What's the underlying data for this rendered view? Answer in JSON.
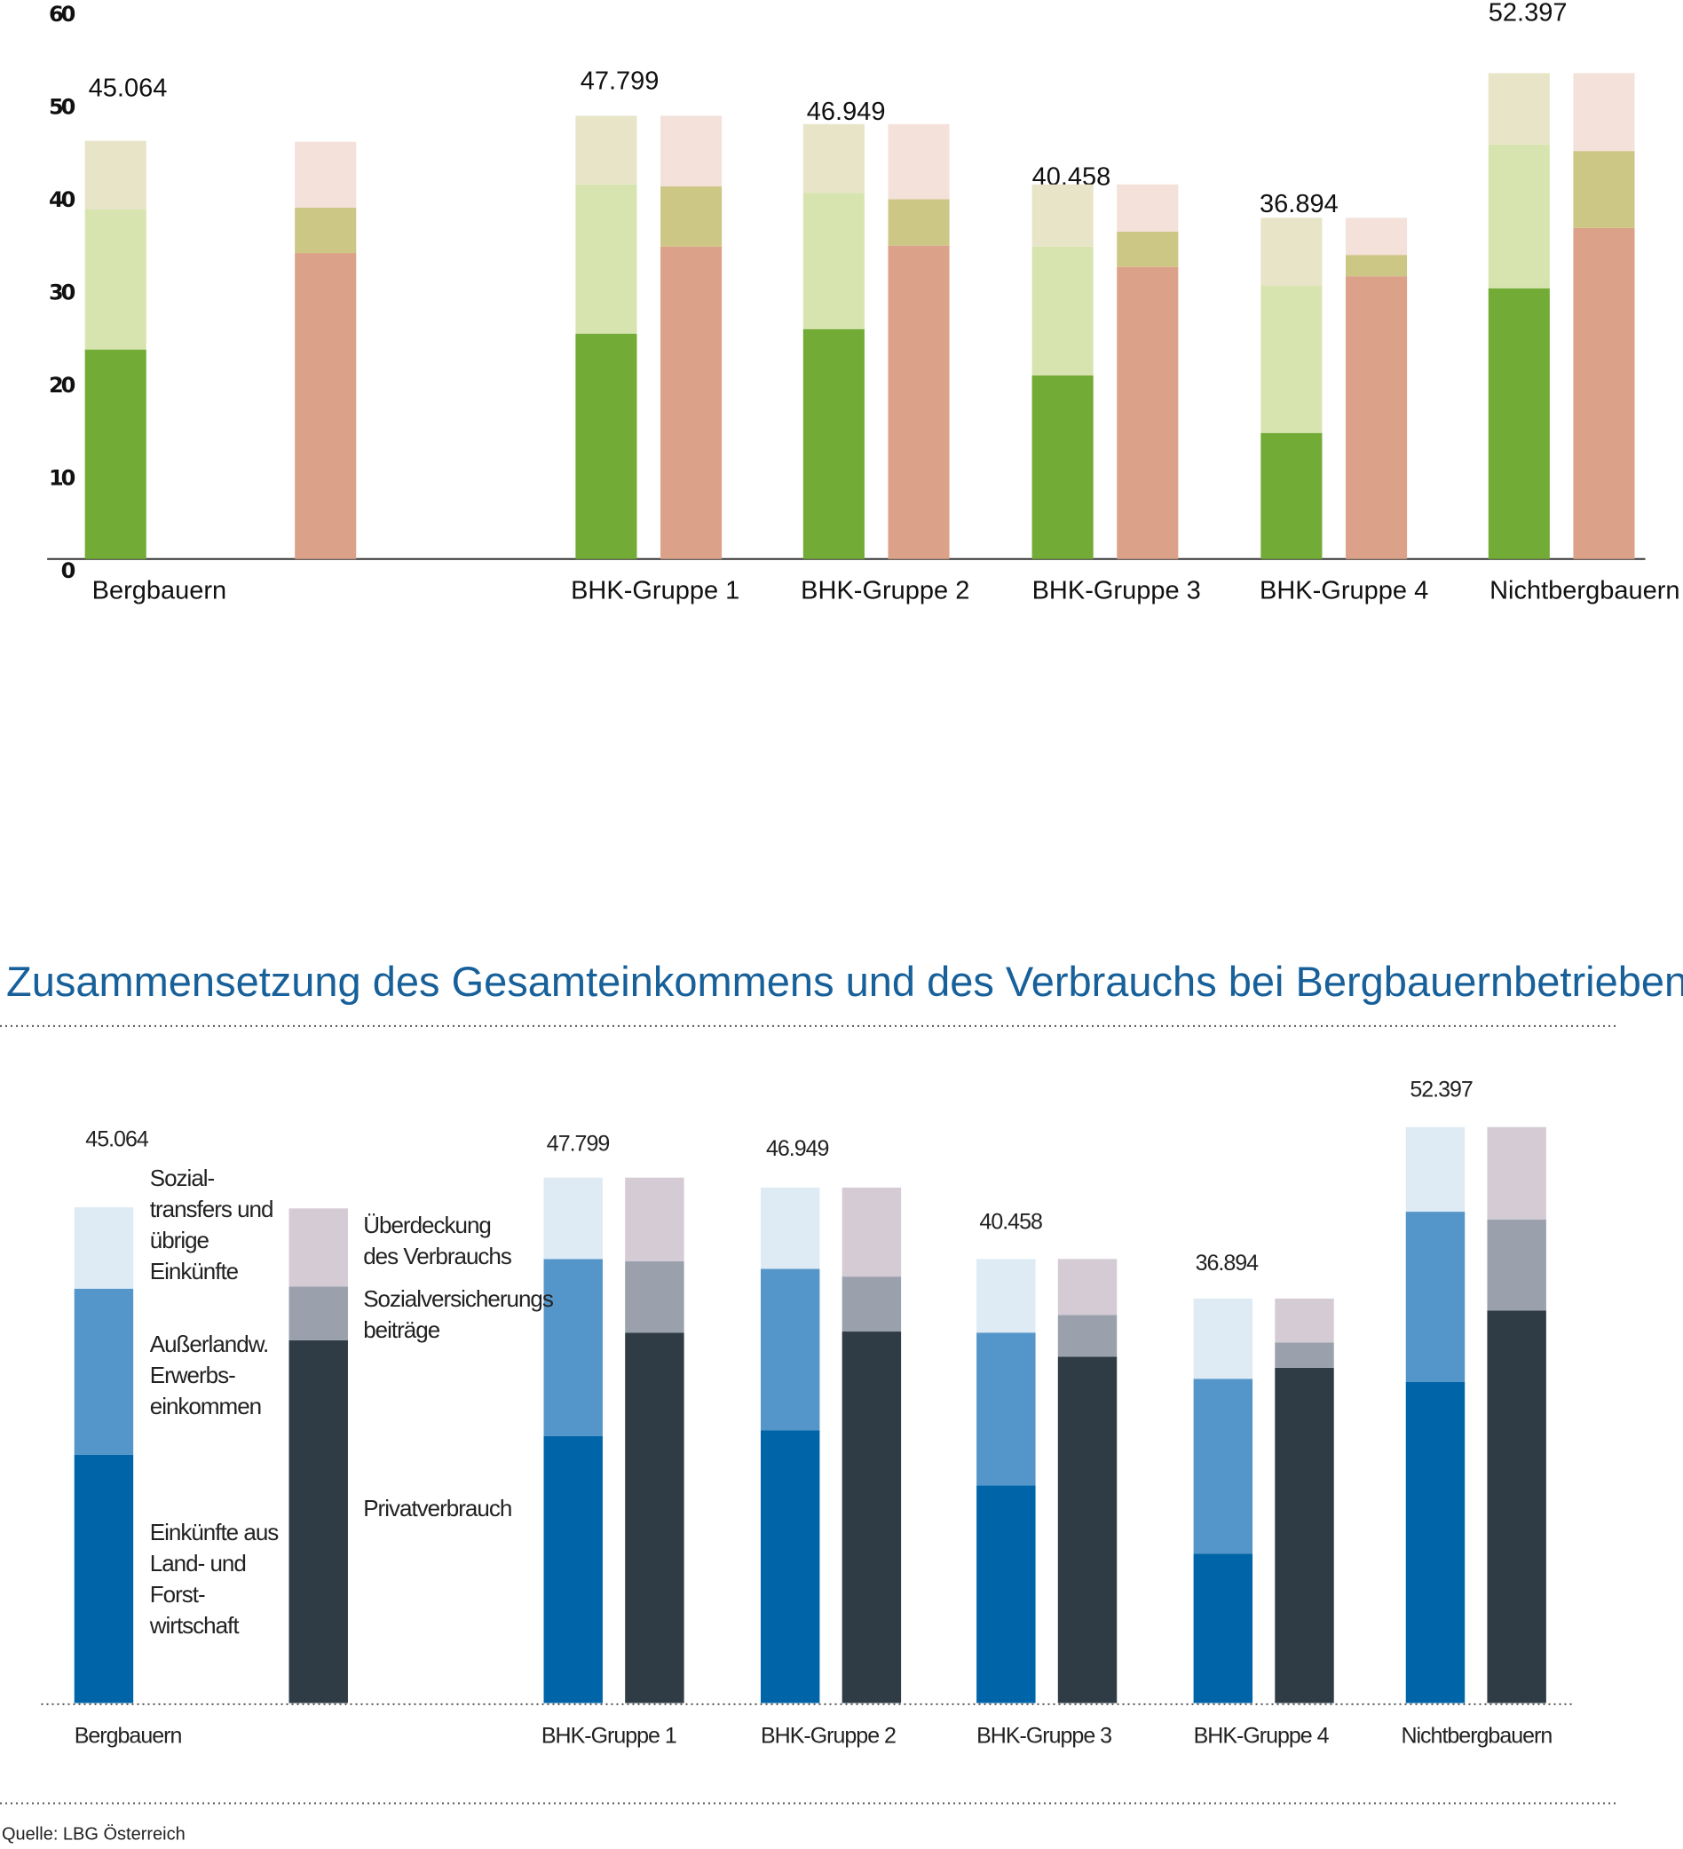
{
  "chart_data": [
    {
      "type": "bar",
      "categories": [
        "Bergbauern",
        "BHK-Gruppe 1",
        "BHK-Gruppe 2",
        "BHK-Gruppe 3",
        "BHK-Gruppe 4",
        "Nichtbergbauern"
      ],
      "totals": [
        45.064,
        47.799,
        46.949,
        40.458,
        36.894,
        52.397
      ],
      "series": [
        {
          "color": "#72ab35",
          "values": [
            22.6,
            24.3,
            24.8,
            19.8,
            13.6,
            29.2
          ]
        },
        {
          "color": "#d8e4b0",
          "values": [
            15.1,
            16.1,
            14.7,
            13.9,
            15.9,
            15.5
          ]
        },
        {
          "color": "#e8e4c8",
          "values": [
            7.4,
            7.4,
            7.4,
            6.7,
            7.3,
            7.7
          ]
        },
        {
          "color": "#dca189",
          "values": [
            33.0,
            33.7,
            33.8,
            31.5,
            30.5,
            35.7
          ]
        },
        {
          "color": "#cdc785",
          "values": [
            4.9,
            6.5,
            5.0,
            3.8,
            2.3,
            8.3
          ]
        },
        {
          "color": "#f4e1da",
          "values": [
            7.1,
            7.6,
            8.1,
            5.1,
            4.0,
            8.4
          ]
        }
      ],
      "ylim": [
        0,
        60
      ],
      "yticks": [
        0,
        10,
        20,
        30,
        40,
        50,
        60
      ]
    },
    {
      "type": "bar",
      "title": "Zusammensetzung des Gesamteinkommens und des Verbrauchs bei Bergbauernbetrieben",
      "categories": [
        "Bergbauern",
        "BHK-Gruppe 1",
        "BHK-Gruppe 2",
        "BHK-Gruppe 3",
        "BHK-Gruppe 4",
        "Nichtbergbauern"
      ],
      "totals": [
        45.064,
        47.799,
        46.949,
        40.458,
        36.894,
        52.397
      ],
      "series": [
        {
          "name": "Einkünfte aus\nLand- und\nForst-\nwirtschaft",
          "color": "#0065a8",
          "values": [
            22.6,
            24.3,
            24.8,
            19.8,
            13.6,
            29.2
          ]
        },
        {
          "name": "Außerlandw.\nErwerbs-\neinkommen",
          "color": "#5496c9",
          "values": [
            15.1,
            16.1,
            14.7,
            13.9,
            15.9,
            15.5
          ]
        },
        {
          "name": "Sozial-\ntransfers und\nübrige\nEinkünfte",
          "color": "#deebf4",
          "values": [
            7.4,
            7.4,
            7.4,
            6.7,
            7.3,
            7.7
          ]
        },
        {
          "name": "Privatverbrauch",
          "color": "#2f3c45",
          "values": [
            33.0,
            33.7,
            33.8,
            31.5,
            30.5,
            35.7
          ]
        },
        {
          "name": "Sozialversicherungs\nbeiträge",
          "color": "#9aa1ad",
          "values": [
            4.9,
            6.5,
            5.0,
            3.8,
            2.3,
            8.3
          ]
        },
        {
          "name": "Überdeckung\ndes Verbrauchs",
          "color": "#d5cbd5",
          "values": [
            7.1,
            7.6,
            8.1,
            5.1,
            4.0,
            8.4
          ]
        }
      ],
      "source": "Quelle: LBG Österreich"
    }
  ]
}
